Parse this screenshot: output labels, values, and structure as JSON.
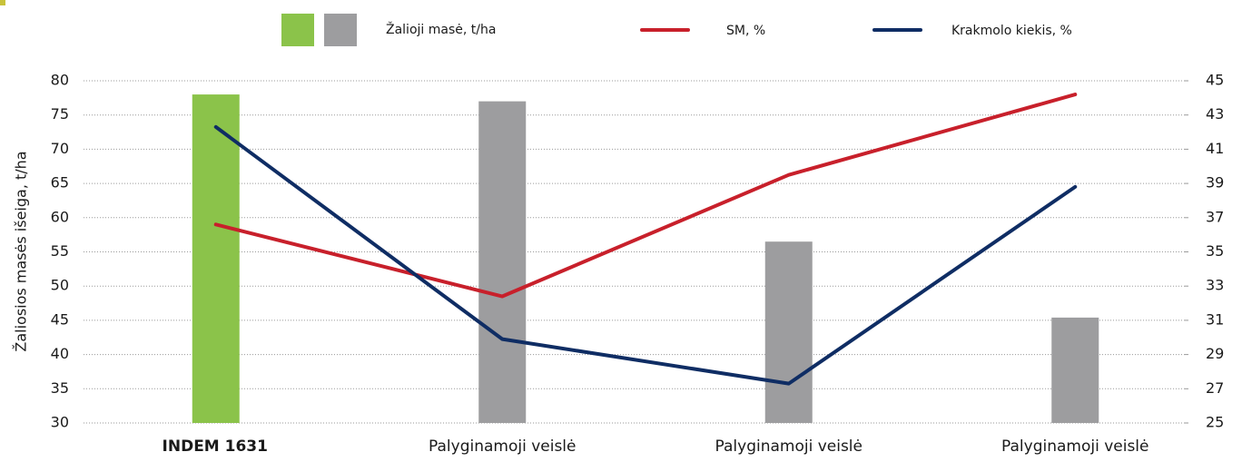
{
  "chart_data": {
    "type": "bar",
    "categories": [
      "INDEM 1631",
      "Palyginamoji veislė",
      "Palyginamoji veislė",
      "Palyginamoji veislė"
    ],
    "series": [
      {
        "name": "Žalioji masė, t/ha",
        "type": "bar",
        "colors": [
          "#8bc34a",
          "#9d9d9f",
          "#9d9d9f",
          "#9d9d9f"
        ],
        "values": [
          78,
          77,
          56.5,
          45.4
        ]
      },
      {
        "name": "SM, %",
        "type": "line",
        "axis": "y2",
        "color": "#c8202b",
        "values": [
          36.6,
          32.4,
          39.5,
          44.2
        ]
      },
      {
        "name": "Krakmolo kiekis, %",
        "type": "line",
        "axis": "y2",
        "color": "#0f2d64",
        "values": [
          42.3,
          29.9,
          27.3,
          38.8
        ]
      }
    ],
    "ylabel": "Žaliosios masės išeiga, t/ha",
    "ylim": [
      30,
      80
    ],
    "yticks": [
      30,
      35,
      40,
      45,
      50,
      55,
      60,
      65,
      70,
      75,
      80
    ],
    "y2lim": [
      25,
      45
    ],
    "y2ticks": [
      25,
      27,
      29,
      31,
      33,
      35,
      37,
      39,
      41,
      43,
      45
    ],
    "grid": true,
    "legend": "top"
  }
}
